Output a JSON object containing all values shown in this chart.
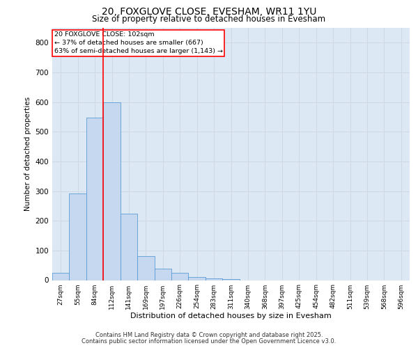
{
  "title_line1": "20, FOXGLOVE CLOSE, EVESHAM, WR11 1YU",
  "title_line2": "Size of property relative to detached houses in Evesham",
  "xlabel": "Distribution of detached houses by size in Evesham",
  "ylabel": "Number of detached properties",
  "categories": [
    "27sqm",
    "55sqm",
    "84sqm",
    "112sqm",
    "141sqm",
    "169sqm",
    "197sqm",
    "226sqm",
    "254sqm",
    "283sqm",
    "311sqm",
    "340sqm",
    "368sqm",
    "397sqm",
    "425sqm",
    "454sqm",
    "482sqm",
    "511sqm",
    "539sqm",
    "568sqm",
    "596sqm"
  ],
  "values": [
    25,
    293,
    547,
    600,
    225,
    82,
    38,
    25,
    10,
    7,
    4,
    0,
    0,
    0,
    0,
    0,
    0,
    0,
    0,
    0,
    0
  ],
  "bar_color": "#c5d8f0",
  "bar_edge_color": "#5b9bd5",
  "grid_color": "#d0d8e8",
  "background_color": "#dde8f5",
  "vline_color": "red",
  "vline_x_index": 2.5,
  "annotation_box_text": "20 FOXGLOVE CLOSE: 102sqm\n← 37% of detached houses are smaller (667)\n63% of semi-detached houses are larger (1,143) →",
  "ylim": [
    0,
    850
  ],
  "yticks": [
    0,
    100,
    200,
    300,
    400,
    500,
    600,
    700,
    800
  ],
  "footer_line1": "Contains HM Land Registry data © Crown copyright and database right 2025.",
  "footer_line2": "Contains public sector information licensed under the Open Government Licence v3.0."
}
